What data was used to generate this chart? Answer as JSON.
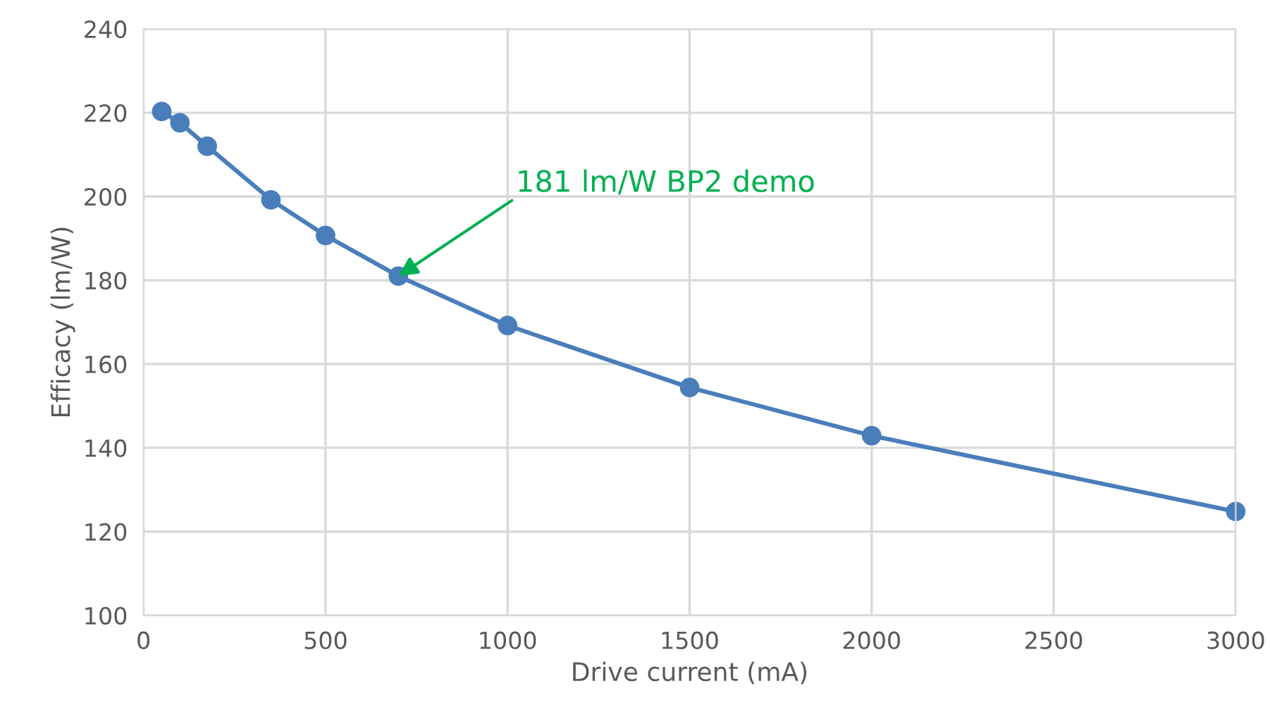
{
  "chart_data": {
    "type": "line",
    "xlabel": "Drive current (mA)",
    "ylabel": "Efficacy (lm/W)",
    "x": [
      50,
      100,
      175,
      350,
      500,
      700,
      1000,
      1500,
      2000,
      3000
    ],
    "series": [
      {
        "color": "#4a7ebb",
        "values": [
          220.3,
          217.6,
          212,
          199.2,
          190.7,
          181,
          169.2,
          154.4,
          142.9,
          124.8
        ]
      }
    ],
    "xlim": [
      0,
      3000
    ],
    "xticks": [
      0,
      500,
      1000,
      1500,
      2000,
      2500,
      3000
    ],
    "ylim": [
      100,
      240
    ],
    "yticks": [
      100,
      120,
      140,
      160,
      180,
      200,
      220,
      240
    ],
    "grid": true,
    "marker": "circle",
    "line_style": "solid",
    "annotations": [
      {
        "text": "181 lm/W BP2 demo",
        "x": 700,
        "y": 181
      }
    ]
  }
}
